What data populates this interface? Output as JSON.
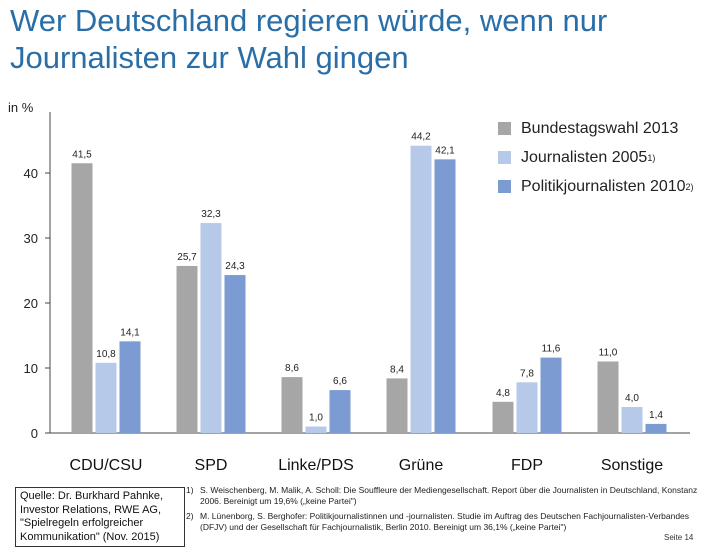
{
  "title_line1": "Wer Deutschland regieren würde, wenn nur",
  "title_line2": "Journalisten zur Wahl gingen",
  "chart_data": {
    "type": "bar",
    "ylabel": "in %",
    "ylim": [
      0,
      45
    ],
    "yticks": [
      0,
      10,
      20,
      30,
      40
    ],
    "grid": false,
    "legend_position": "top-right",
    "categories": [
      "CDU/CSU",
      "SPD",
      "Linke/PDS",
      "Grüne",
      "FDP",
      "Sonstige"
    ],
    "series": [
      {
        "name": "Bundestagswahl 2013",
        "sup": "",
        "color": "#a6a6a6",
        "values": [
          41.5,
          25.7,
          8.6,
          8.4,
          4.8,
          11.0
        ],
        "labels": [
          "41,5",
          "25,7",
          "8,6",
          "8,4",
          "4,8",
          "11,0"
        ]
      },
      {
        "name": "Journalisten 2005",
        "sup": "1)",
        "color": "#b7c9e8",
        "values": [
          10.8,
          32.3,
          1.0,
          44.2,
          7.8,
          4.0
        ],
        "labels": [
          "10,8",
          "32,3",
          "1,0",
          "44,2",
          "7,8",
          "4,0"
        ]
      },
      {
        "name": "Politikjournalisten 2010",
        "sup": "2)",
        "color": "#7b9bd2",
        "values": [
          14.1,
          24.3,
          6.6,
          42.1,
          11.6,
          1.4
        ],
        "labels": [
          "14,1",
          "24,3",
          "6,6",
          "42,1",
          "11,6",
          "1,4"
        ]
      }
    ]
  },
  "source": "Quelle: Dr. Burkhard Pahnke, Investor Relations, RWE AG, \"Spielregeln erfolgreicher Kommunikation\" (Nov. 2015)",
  "footnotes": [
    {
      "num": "1)",
      "text": "S. Weischenberg, M. Malik, A. Scholl: Die Souffleure der Mediengesellschaft. Report über die Journalisten in Deutschland, Konstanz 2006. Bereinigt um 19,6% („keine Partei\")"
    },
    {
      "num": "2)",
      "text": "M. Lünenborg, S. Berghofer: Politikjournalistinnen und -journalisten. Studie im Auftrag des Deutschen Fachjournalisten-Verbandes (DFJV) und der Gesellschaft für Fachjournalistik, Berlin 2010. Bereinigt um 36,1% („keine Partei\")"
    }
  ],
  "page_number": "Seite 14"
}
